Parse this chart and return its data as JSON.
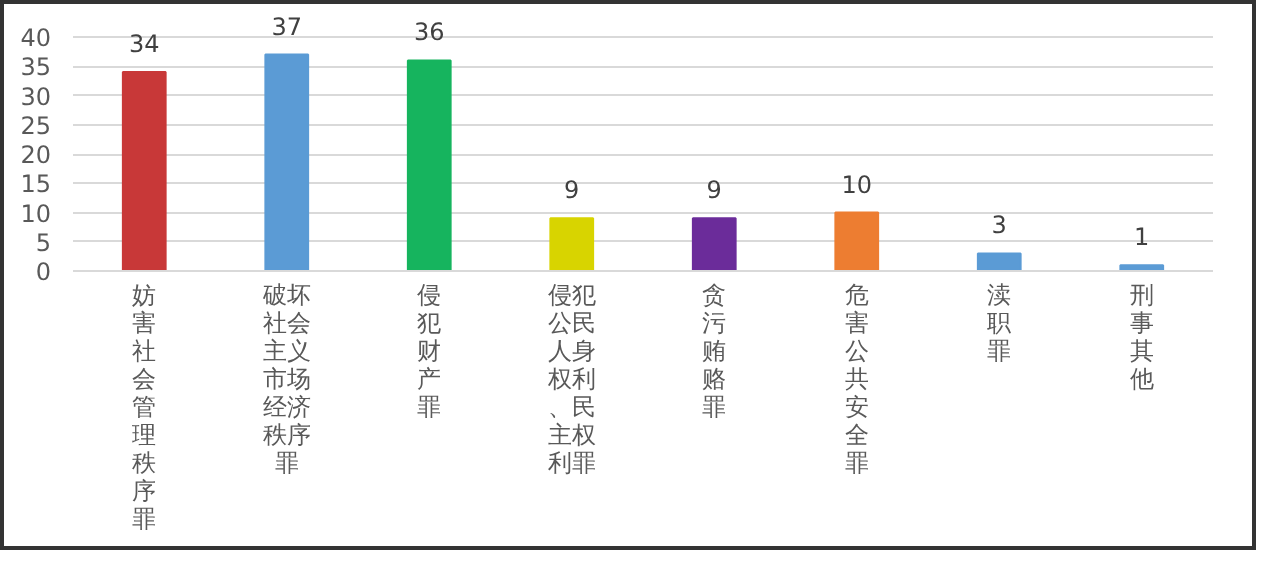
{
  "chart_data": {
    "type": "bar",
    "categories": [
      "妨害社会管理秩序罪",
      "破坏社会主义市场经济秩序罪",
      "侵犯财产罪",
      "侵犯公民人身权利、民主权利罪",
      "贪污贿赂罪",
      "危害公共安全罪",
      "渎职罪",
      "刑事其他"
    ],
    "values": [
      34,
      37,
      36,
      9,
      9,
      10,
      3,
      1
    ],
    "colors": [
      "#c83838",
      "#5b9bd5",
      "#16b45e",
      "#d8d400",
      "#6b2c9a",
      "#ed7d31",
      "#5b9bd5",
      "#5b9bd5"
    ],
    "ylim": [
      0,
      40
    ],
    "yticks": [
      0,
      5,
      10,
      15,
      20,
      25,
      30,
      35,
      40
    ],
    "grid": "y",
    "data_labels": true
  }
}
